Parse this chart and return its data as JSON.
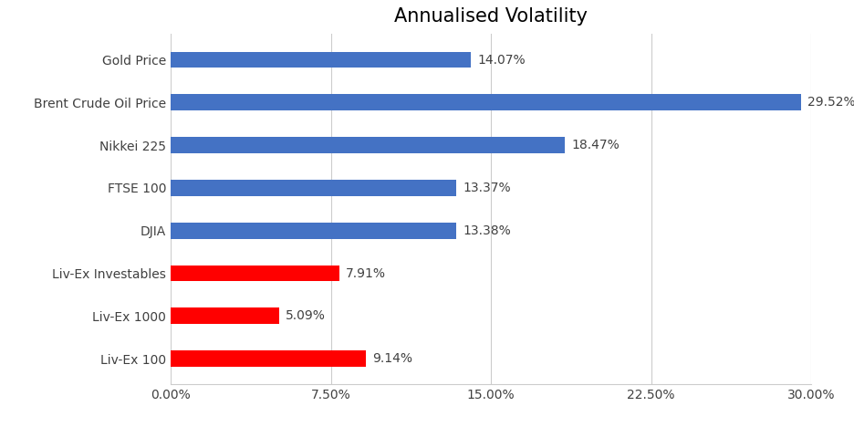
{
  "title": "Annualised Volatility",
  "categories": [
    "Gold Price",
    "Brent Crude Oil Price",
    "Nikkei 225",
    "FTSE 100",
    "DJIA",
    "Liv-Ex Investables",
    "Liv-Ex 1000",
    "Liv-Ex 100"
  ],
  "values": [
    14.07,
    29.52,
    18.47,
    13.37,
    13.38,
    7.91,
    5.09,
    9.14
  ],
  "colors": [
    "#4472C4",
    "#4472C4",
    "#4472C4",
    "#4472C4",
    "#4472C4",
    "#FF0000",
    "#FF0000",
    "#FF0000"
  ],
  "bar_labels": [
    "14.07%",
    "29.52%",
    "18.47%",
    "13.37%",
    "13.38%",
    "7.91%",
    "5.09%",
    "9.14%"
  ],
  "xlim": [
    0,
    30
  ],
  "xticks": [
    0,
    7.5,
    15.0,
    22.5,
    30.0
  ],
  "xtick_labels": [
    "0.00%",
    "7.50%",
    "15.00%",
    "22.50%",
    "30.00%"
  ],
  "title_fontsize": 15,
  "label_fontsize": 10,
  "bar_label_fontsize": 10,
  "background_color": "#FFFFFF",
  "grid_color": "#CCCCCC"
}
